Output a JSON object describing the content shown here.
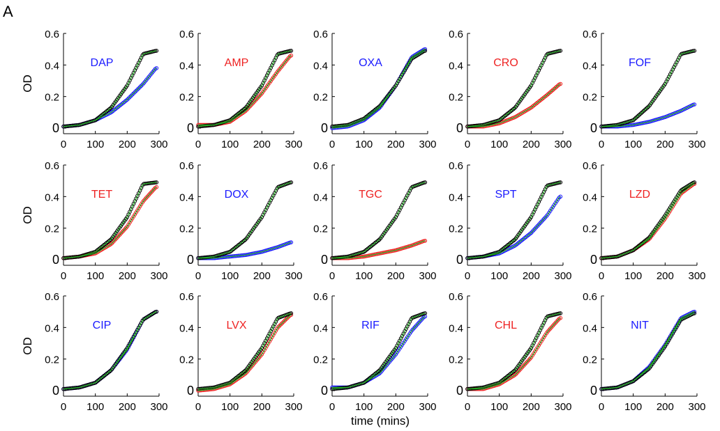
{
  "figure": {
    "panel_letter": "A",
    "xlabel": "time (mins)",
    "ylabel": "OD"
  },
  "colors": {
    "control_points": "#000000",
    "control_fit": "#22aa22",
    "blue": "#1a1aff",
    "red": "#ee2222"
  },
  "chart_data": [
    {
      "type": "scatter",
      "drug": "DAP",
      "color": "blue",
      "xlim": [
        0,
        300
      ],
      "ylim": [
        0,
        0.6
      ],
      "xticks": [
        0,
        100,
        200,
        300
      ],
      "yticks": [
        0,
        0.2,
        0.4,
        0.6
      ],
      "series": [
        {
          "name": "control",
          "x": [
            0,
            50,
            100,
            150,
            200,
            250,
            290
          ],
          "y": [
            0.01,
            0.02,
            0.05,
            0.13,
            0.27,
            0.47,
            0.49
          ]
        },
        {
          "name": "DAP",
          "x": [
            0,
            50,
            100,
            150,
            200,
            250,
            290
          ],
          "y": [
            0.01,
            0.02,
            0.05,
            0.1,
            0.18,
            0.28,
            0.38
          ]
        }
      ]
    },
    {
      "type": "scatter",
      "drug": "AMP",
      "color": "red",
      "xlim": [
        0,
        300
      ],
      "ylim": [
        0,
        0.6
      ],
      "xticks": [
        0,
        100,
        200,
        300
      ],
      "yticks": [
        0,
        0.2,
        0.4,
        0.6
      ],
      "series": [
        {
          "name": "control",
          "x": [
            0,
            50,
            100,
            150,
            200,
            250,
            290
          ],
          "y": [
            0.01,
            0.02,
            0.05,
            0.13,
            0.27,
            0.47,
            0.49
          ]
        },
        {
          "name": "AMP",
          "x": [
            0,
            50,
            100,
            150,
            200,
            250,
            290
          ],
          "y": [
            0.02,
            0.02,
            0.04,
            0.11,
            0.22,
            0.36,
            0.46
          ]
        }
      ]
    },
    {
      "type": "scatter",
      "drug": "OXA",
      "color": "blue",
      "xlim": [
        0,
        300
      ],
      "ylim": [
        0,
        0.6
      ],
      "xticks": [
        0,
        100,
        200,
        300
      ],
      "yticks": [
        0,
        0.2,
        0.4,
        0.6
      ],
      "series": [
        {
          "name": "control",
          "x": [
            0,
            50,
            100,
            150,
            200,
            250,
            290
          ],
          "y": [
            0.01,
            0.02,
            0.06,
            0.14,
            0.27,
            0.44,
            0.49
          ]
        },
        {
          "name": "OXA",
          "x": [
            0,
            50,
            100,
            150,
            200,
            250,
            290
          ],
          "y": [
            0.0,
            0.01,
            0.05,
            0.13,
            0.27,
            0.45,
            0.5
          ]
        }
      ]
    },
    {
      "type": "scatter",
      "drug": "CRO",
      "color": "red",
      "xlim": [
        0,
        300
      ],
      "ylim": [
        0,
        0.6
      ],
      "xticks": [
        0,
        100,
        200,
        300
      ],
      "yticks": [
        0,
        0.2,
        0.4,
        0.6
      ],
      "series": [
        {
          "name": "control",
          "x": [
            0,
            50,
            100,
            150,
            200,
            250,
            290
          ],
          "y": [
            0.01,
            0.02,
            0.05,
            0.13,
            0.27,
            0.47,
            0.49
          ]
        },
        {
          "name": "CRO",
          "x": [
            0,
            50,
            100,
            150,
            200,
            250,
            290
          ],
          "y": [
            0.01,
            0.01,
            0.03,
            0.07,
            0.13,
            0.21,
            0.28
          ]
        }
      ]
    },
    {
      "type": "scatter",
      "drug": "FOF",
      "color": "blue",
      "xlim": [
        0,
        300
      ],
      "ylim": [
        0,
        0.6
      ],
      "xticks": [
        0,
        100,
        200,
        300
      ],
      "yticks": [
        0,
        0.2,
        0.4,
        0.6
      ],
      "series": [
        {
          "name": "control",
          "x": [
            0,
            50,
            100,
            150,
            200,
            250,
            290
          ],
          "y": [
            0.01,
            0.02,
            0.05,
            0.14,
            0.28,
            0.47,
            0.49
          ]
        },
        {
          "name": "FOF",
          "x": [
            0,
            50,
            100,
            150,
            200,
            250,
            290
          ],
          "y": [
            0.01,
            0.01,
            0.02,
            0.04,
            0.07,
            0.11,
            0.15
          ]
        }
      ]
    },
    {
      "type": "scatter",
      "drug": "TET",
      "color": "red",
      "xlim": [
        0,
        300
      ],
      "ylim": [
        0,
        0.6
      ],
      "xticks": [
        0,
        100,
        200,
        300
      ],
      "yticks": [
        0,
        0.2,
        0.4,
        0.6
      ],
      "series": [
        {
          "name": "control",
          "x": [
            0,
            50,
            100,
            150,
            200,
            250,
            290
          ],
          "y": [
            0.01,
            0.02,
            0.05,
            0.13,
            0.27,
            0.48,
            0.49
          ]
        },
        {
          "name": "TET",
          "x": [
            0,
            50,
            100,
            150,
            200,
            250,
            290
          ],
          "y": [
            0.01,
            0.02,
            0.04,
            0.1,
            0.21,
            0.37,
            0.46
          ]
        }
      ]
    },
    {
      "type": "scatter",
      "drug": "DOX",
      "color": "blue",
      "xlim": [
        0,
        300
      ],
      "ylim": [
        0,
        0.6
      ],
      "xticks": [
        0,
        100,
        200,
        300
      ],
      "yticks": [
        0,
        0.2,
        0.4,
        0.6
      ],
      "series": [
        {
          "name": "control",
          "x": [
            0,
            50,
            100,
            150,
            200,
            250,
            290
          ],
          "y": [
            0.01,
            0.02,
            0.05,
            0.13,
            0.27,
            0.46,
            0.49
          ]
        },
        {
          "name": "DOX",
          "x": [
            0,
            50,
            100,
            150,
            200,
            250,
            290
          ],
          "y": [
            0.01,
            0.01,
            0.02,
            0.03,
            0.05,
            0.08,
            0.11
          ]
        }
      ]
    },
    {
      "type": "scatter",
      "drug": "TGC",
      "color": "red",
      "xlim": [
        0,
        300
      ],
      "ylim": [
        0,
        0.6
      ],
      "xticks": [
        0,
        100,
        200,
        300
      ],
      "yticks": [
        0,
        0.2,
        0.4,
        0.6
      ],
      "series": [
        {
          "name": "control",
          "x": [
            0,
            50,
            100,
            150,
            200,
            250,
            290
          ],
          "y": [
            0.01,
            0.02,
            0.05,
            0.13,
            0.27,
            0.46,
            0.49
          ]
        },
        {
          "name": "TGC",
          "x": [
            0,
            50,
            100,
            150,
            200,
            250,
            290
          ],
          "y": [
            0.01,
            0.01,
            0.02,
            0.04,
            0.06,
            0.09,
            0.12
          ]
        }
      ]
    },
    {
      "type": "scatter",
      "drug": "SPT",
      "color": "blue",
      "xlim": [
        0,
        300
      ],
      "ylim": [
        0,
        0.6
      ],
      "xticks": [
        0,
        100,
        200,
        300
      ],
      "yticks": [
        0,
        0.2,
        0.4,
        0.6
      ],
      "series": [
        {
          "name": "control",
          "x": [
            0,
            50,
            100,
            150,
            200,
            250,
            290
          ],
          "y": [
            0.01,
            0.02,
            0.05,
            0.13,
            0.27,
            0.47,
            0.49
          ]
        },
        {
          "name": "SPT",
          "x": [
            0,
            50,
            100,
            150,
            200,
            250,
            290
          ],
          "y": [
            0.01,
            0.02,
            0.04,
            0.09,
            0.17,
            0.28,
            0.4
          ]
        }
      ]
    },
    {
      "type": "scatter",
      "drug": "LZD",
      "color": "red",
      "xlim": [
        0,
        300
      ],
      "ylim": [
        0,
        0.6
      ],
      "xticks": [
        0,
        100,
        200,
        300
      ],
      "yticks": [
        0,
        0.2,
        0.4,
        0.6
      ],
      "series": [
        {
          "name": "control",
          "x": [
            0,
            50,
            100,
            150,
            200,
            250,
            290
          ],
          "y": [
            0.01,
            0.02,
            0.06,
            0.14,
            0.28,
            0.44,
            0.49
          ]
        },
        {
          "name": "LZD",
          "x": [
            0,
            50,
            100,
            150,
            200,
            250,
            290
          ],
          "y": [
            0.01,
            0.02,
            0.06,
            0.13,
            0.26,
            0.42,
            0.48
          ]
        }
      ]
    },
    {
      "type": "scatter",
      "drug": "CIP",
      "color": "blue",
      "xlim": [
        0,
        300
      ],
      "ylim": [
        0,
        0.6
      ],
      "xticks": [
        0,
        100,
        200,
        300
      ],
      "yticks": [
        0,
        0.2,
        0.4,
        0.6
      ],
      "series": [
        {
          "name": "control",
          "x": [
            0,
            50,
            100,
            150,
            200,
            250,
            290
          ],
          "y": [
            0.01,
            0.02,
            0.05,
            0.13,
            0.27,
            0.45,
            0.5
          ]
        },
        {
          "name": "CIP",
          "x": [
            0,
            50,
            100,
            150,
            200,
            250,
            290
          ],
          "y": [
            0.01,
            0.02,
            0.05,
            0.13,
            0.26,
            0.45,
            0.5
          ]
        }
      ]
    },
    {
      "type": "scatter",
      "drug": "LVX",
      "color": "red",
      "xlim": [
        0,
        300
      ],
      "ylim": [
        0,
        0.6
      ],
      "xticks": [
        0,
        100,
        200,
        300
      ],
      "yticks": [
        0,
        0.2,
        0.4,
        0.6
      ],
      "series": [
        {
          "name": "control",
          "x": [
            0,
            50,
            100,
            150,
            200,
            250,
            290
          ],
          "y": [
            0.01,
            0.02,
            0.05,
            0.13,
            0.27,
            0.46,
            0.49
          ]
        },
        {
          "name": "LVX",
          "x": [
            0,
            50,
            100,
            150,
            200,
            250,
            290
          ],
          "y": [
            0.0,
            0.01,
            0.04,
            0.11,
            0.23,
            0.4,
            0.48
          ]
        }
      ]
    },
    {
      "type": "scatter",
      "drug": "RIF",
      "color": "blue",
      "xlim": [
        0,
        300
      ],
      "ylim": [
        0,
        0.6
      ],
      "xticks": [
        0,
        100,
        200,
        300
      ],
      "yticks": [
        0,
        0.2,
        0.4,
        0.6
      ],
      "series": [
        {
          "name": "control",
          "x": [
            0,
            50,
            100,
            150,
            200,
            250,
            290
          ],
          "y": [
            0.01,
            0.02,
            0.05,
            0.13,
            0.27,
            0.46,
            0.49
          ]
        },
        {
          "name": "RIF",
          "x": [
            0,
            50,
            100,
            150,
            200,
            250,
            290
          ],
          "y": [
            0.02,
            0.02,
            0.05,
            0.11,
            0.23,
            0.38,
            0.47
          ]
        }
      ]
    },
    {
      "type": "scatter",
      "drug": "CHL",
      "color": "red",
      "xlim": [
        0,
        300
      ],
      "ylim": [
        0,
        0.6
      ],
      "xticks": [
        0,
        100,
        200,
        300
      ],
      "yticks": [
        0,
        0.2,
        0.4,
        0.6
      ],
      "series": [
        {
          "name": "control",
          "x": [
            0,
            50,
            100,
            150,
            200,
            250,
            290
          ],
          "y": [
            0.01,
            0.02,
            0.05,
            0.13,
            0.27,
            0.47,
            0.49
          ]
        },
        {
          "name": "CHL",
          "x": [
            0,
            50,
            100,
            150,
            200,
            250,
            290
          ],
          "y": [
            0.01,
            0.01,
            0.04,
            0.1,
            0.21,
            0.37,
            0.46
          ]
        }
      ]
    },
    {
      "type": "scatter",
      "drug": "NIT",
      "color": "blue",
      "xlim": [
        0,
        300
      ],
      "ylim": [
        0,
        0.6
      ],
      "xticks": [
        0,
        100,
        200,
        300
      ],
      "yticks": [
        0,
        0.2,
        0.4,
        0.6
      ],
      "series": [
        {
          "name": "control",
          "x": [
            0,
            50,
            100,
            150,
            200,
            250,
            290
          ],
          "y": [
            0.01,
            0.02,
            0.06,
            0.14,
            0.28,
            0.45,
            0.49
          ]
        },
        {
          "name": "NIT",
          "x": [
            0,
            50,
            100,
            150,
            200,
            250,
            290
          ],
          "y": [
            0.01,
            0.02,
            0.06,
            0.15,
            0.29,
            0.46,
            0.5
          ]
        }
      ]
    }
  ]
}
